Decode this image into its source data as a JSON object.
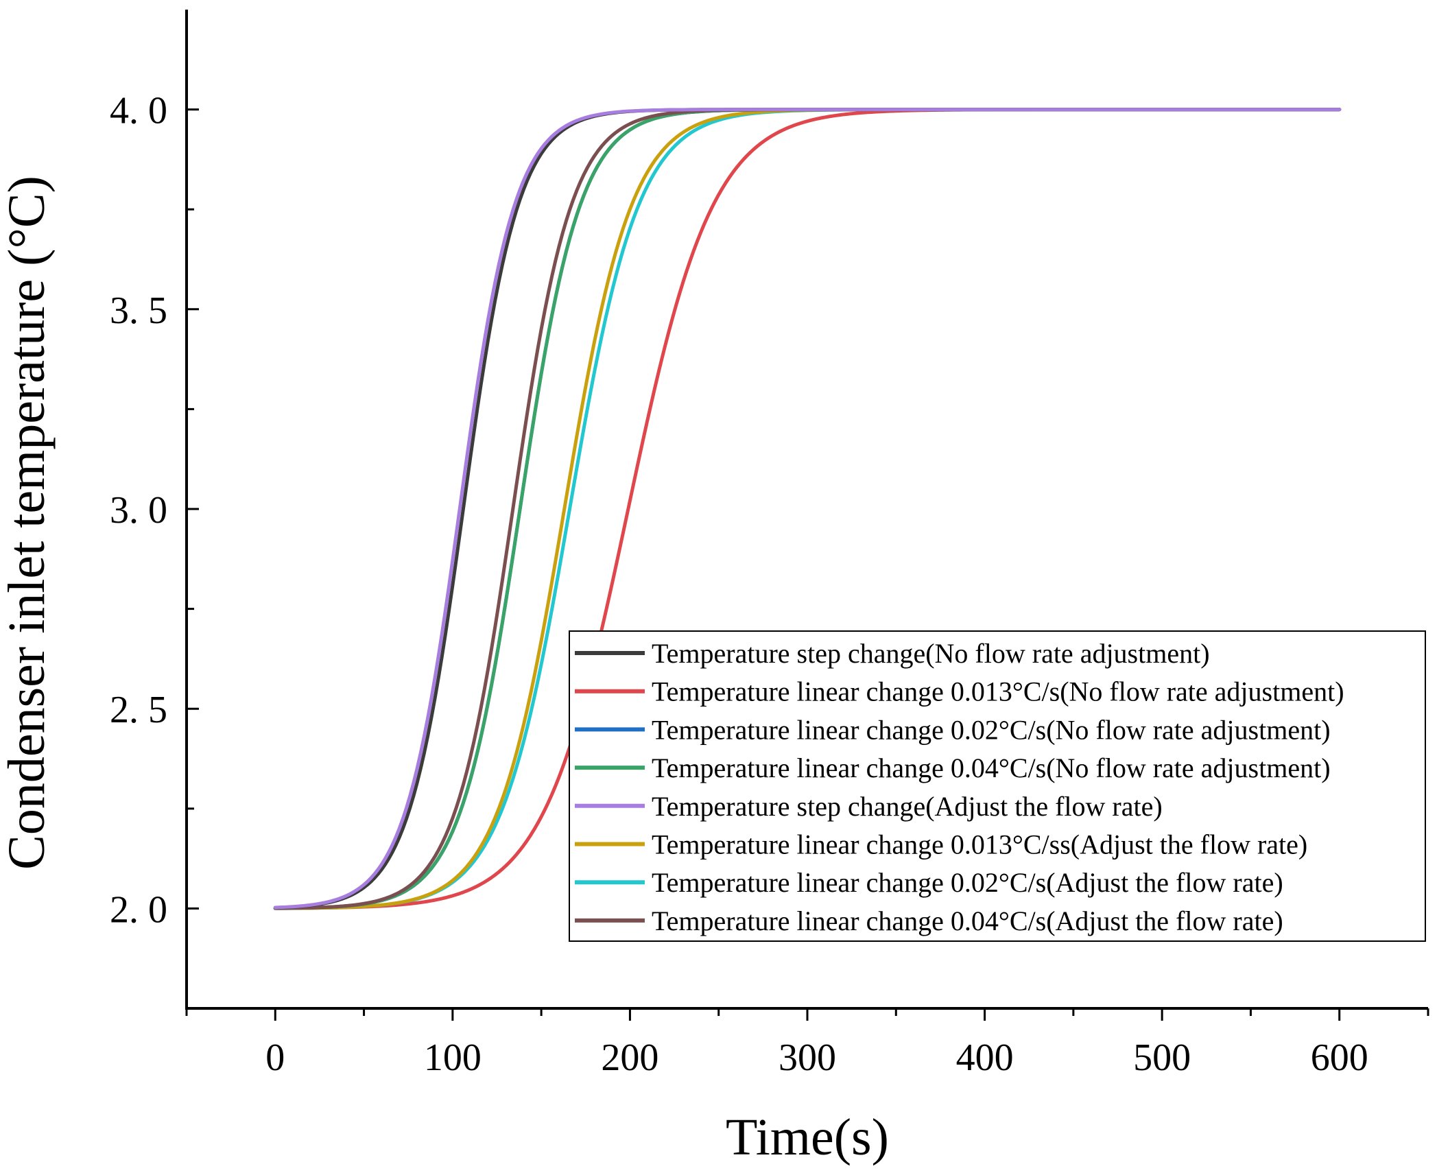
{
  "chart_data": {
    "type": "line",
    "xlabel": "Time(s)",
    "ylabel": "Condenser inlet temperature (°C)",
    "xlim": [
      -50,
      650
    ],
    "ylim": [
      1.75,
      4.25
    ],
    "xticks": [
      0,
      100,
      200,
      300,
      400,
      500,
      600
    ],
    "xtick_labels": [
      "0",
      "100",
      "200",
      "300",
      "400",
      "500",
      "600"
    ],
    "xminor_ticks": [
      -50,
      50,
      150,
      250,
      350,
      450,
      550,
      650
    ],
    "yticks": [
      2.0,
      2.5,
      3.0,
      3.5,
      4.0
    ],
    "ytick_labels": [
      "2. 0",
      "2. 5",
      "3. 0",
      "3. 5",
      "4. 0"
    ],
    "yminor_ticks": [
      2.25,
      2.75,
      3.25,
      3.75
    ],
    "legend_position": "lower-right",
    "x_start": 0,
    "x_end": 600,
    "series": [
      {
        "name": "Temperature step change(No flow rate adjustment)",
        "color": "#3b3b3b",
        "start": 2.0,
        "end": 4.0,
        "midpoint": 106,
        "width": 15.5
      },
      {
        "name": "Temperature linear change 0.013°C/s(No flow rate adjustment)",
        "color": "#e0474c",
        "start": 2.0,
        "end": 4.0,
        "midpoint": 199,
        "width": 24.0
      },
      {
        "name": "Temperature linear change 0.02°C/s(No flow rate adjustment)",
        "color": "#1f6fc5",
        "start": 2.0,
        "end": 4.0,
        "midpoint": 138,
        "width": 17.0
      },
      {
        "name": "Temperature linear change 0.04°C/s(No flow rate adjustment)",
        "color": "#3aa367",
        "start": 2.0,
        "end": 4.0,
        "midpoint": 138,
        "width": 17.0
      },
      {
        "name": "Temperature step change(Adjust the flow rate)",
        "color": "#a77ee0",
        "start": 2.0,
        "end": 4.0,
        "midpoint": 104,
        "width": 15.5
      },
      {
        "name": "Temperature linear change 0.013°C/ss(Adjust the flow rate)",
        "color": "#c9a10e",
        "start": 2.0,
        "end": 4.0,
        "midpoint": 163,
        "width": 19.0
      },
      {
        "name": "Temperature linear change 0.02°C/s(Adjust the flow rate)",
        "color": "#22c7cf",
        "start": 2.0,
        "end": 4.0,
        "midpoint": 166,
        "width": 19.5
      },
      {
        "name": "Temperature linear change 0.04°C/s(Adjust the flow rate)",
        "color": "#7b4f4f",
        "start": 2.0,
        "end": 4.0,
        "midpoint": 134,
        "width": 16.5
      }
    ]
  }
}
